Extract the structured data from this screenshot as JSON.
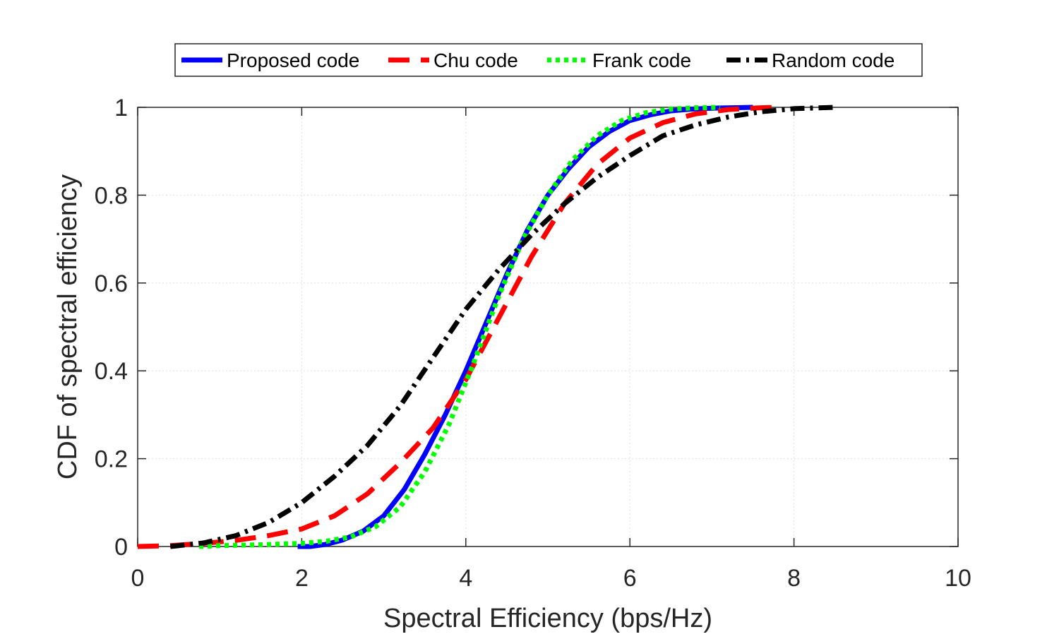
{
  "chart_data": {
    "type": "line",
    "title": "",
    "xlabel": "Spectral Efficiency (bps/Hz)",
    "ylabel": "CDF of spectral efficiency",
    "xlim": [
      0,
      10
    ],
    "ylim": [
      0,
      1
    ],
    "xticks": [
      0,
      2,
      4,
      6,
      8,
      10
    ],
    "xtick_labels": [
      "0",
      "2",
      "4",
      "6",
      "8",
      "10"
    ],
    "yticks": [
      0,
      0.2,
      0.4,
      0.6,
      0.8,
      1
    ],
    "ytick_labels": [
      "0",
      "0.2",
      "0.4",
      "0.6",
      "0.8",
      "1"
    ],
    "grid": true,
    "legend_position": "top-center-outside",
    "series": [
      {
        "name": "Proposed code",
        "color": "#0000ff",
        "dash": "solid",
        "x": [
          1.95,
          2.1,
          2.3,
          2.5,
          2.75,
          3.0,
          3.25,
          3.5,
          3.75,
          4.0,
          4.25,
          4.5,
          4.75,
          5.0,
          5.25,
          5.5,
          5.75,
          6.0,
          6.25,
          6.5,
          6.75,
          7.0,
          7.25,
          7.5
        ],
        "y": [
          0.0,
          0.0,
          0.005,
          0.015,
          0.035,
          0.07,
          0.13,
          0.21,
          0.3,
          0.4,
          0.51,
          0.62,
          0.72,
          0.8,
          0.86,
          0.91,
          0.945,
          0.97,
          0.983,
          0.992,
          0.996,
          0.998,
          0.999,
          1.0
        ]
      },
      {
        "name": "Chu code",
        "color": "#ff0000",
        "dash": "long-dash",
        "x": [
          0.0,
          0.4,
          0.8,
          1.2,
          1.6,
          2.0,
          2.4,
          2.8,
          3.2,
          3.6,
          4.0,
          4.4,
          4.8,
          5.2,
          5.6,
          6.0,
          6.4,
          6.8,
          7.2,
          7.6,
          7.8
        ],
        "y": [
          0.0,
          0.002,
          0.007,
          0.014,
          0.025,
          0.04,
          0.07,
          0.12,
          0.19,
          0.27,
          0.38,
          0.52,
          0.66,
          0.78,
          0.87,
          0.93,
          0.965,
          0.985,
          0.995,
          0.999,
          1.0
        ]
      },
      {
        "name": "Frank code",
        "color": "#00ff00",
        "dash": "dotted",
        "x": [
          0.75,
          1.0,
          1.5,
          2.0,
          2.3,
          2.6,
          2.9,
          3.2,
          3.5,
          3.8,
          4.1,
          4.4,
          4.7,
          5.0,
          5.3,
          5.6,
          5.9,
          6.2,
          6.5,
          6.8,
          7.1
        ],
        "y": [
          0.0,
          0.002,
          0.004,
          0.007,
          0.012,
          0.022,
          0.045,
          0.09,
          0.17,
          0.28,
          0.42,
          0.57,
          0.7,
          0.8,
          0.88,
          0.935,
          0.97,
          0.988,
          0.996,
          0.999,
          1.0
        ]
      },
      {
        "name": "Random code",
        "color": "#000000",
        "dash": "dash-dot",
        "x": [
          0.4,
          0.8,
          1.2,
          1.6,
          2.0,
          2.4,
          2.8,
          3.2,
          3.6,
          4.0,
          4.4,
          4.8,
          5.2,
          5.6,
          6.0,
          6.4,
          6.8,
          7.2,
          7.6,
          8.0,
          8.5
        ],
        "y": [
          0.0,
          0.008,
          0.025,
          0.055,
          0.1,
          0.16,
          0.23,
          0.32,
          0.43,
          0.54,
          0.63,
          0.71,
          0.78,
          0.84,
          0.89,
          0.935,
          0.96,
          0.978,
          0.99,
          0.997,
          1.0
        ]
      }
    ]
  }
}
